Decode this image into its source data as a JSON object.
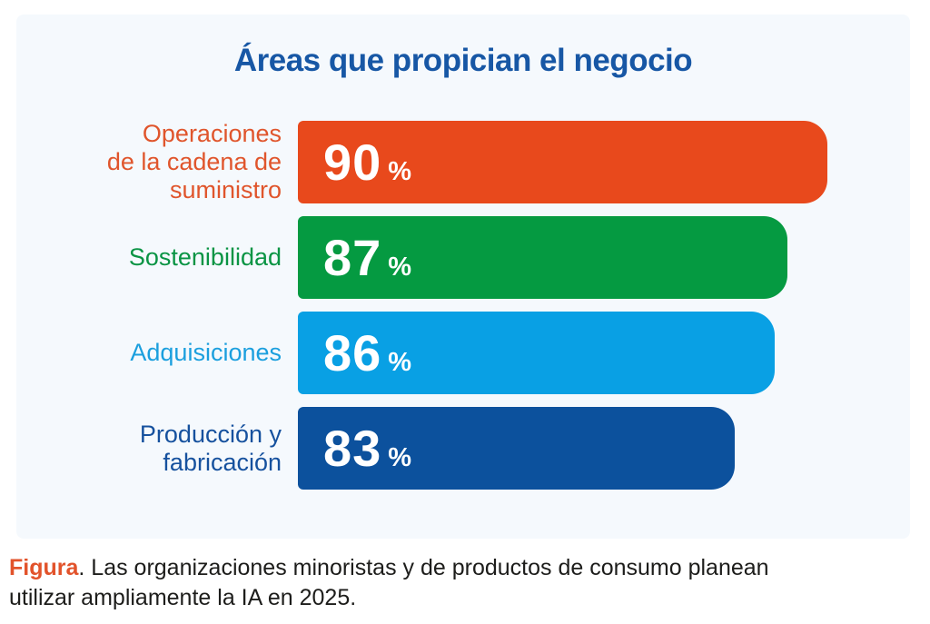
{
  "page": {
    "background": "#FFFFFF",
    "panel_background": "#F5F9FD"
  },
  "chart_data": {
    "type": "bar",
    "orientation": "horizontal",
    "title": "Áreas que propician el negocio",
    "title_color": "#1757A5",
    "unit": "%",
    "xlim": [
      50,
      90
    ],
    "grid": false,
    "legend": false,
    "value_labels_inside_bars": true,
    "categories": [
      "Operaciones de la cadena de suministro",
      "Sostenibilidad",
      "Adquisiciones",
      "Producción y fabricación"
    ],
    "values": [
      90,
      87,
      86,
      83
    ],
    "rows": [
      {
        "label": "Operaciones\nde la cadena de\nsuministro",
        "value": 90,
        "unit": "%",
        "color": "#E8491C",
        "label_color": "#E0552C"
      },
      {
        "label": "Sostenibilidad",
        "value": 87,
        "unit": "%",
        "color": "#059A41",
        "label_color": "#0A9444"
      },
      {
        "label": "Adquisiciones",
        "value": 86,
        "unit": "%",
        "color": "#09A0E4",
        "label_color": "#1B9FDE"
      },
      {
        "label": "Producción y\nfabricación",
        "value": 83,
        "unit": "%",
        "color": "#0C519D",
        "label_color": "#16519E"
      }
    ]
  },
  "caption": {
    "prefix": "Figura",
    "prefix_color": "#E2532B",
    "text": ". Las organizaciones minoristas y de productos de consumo planean\nutilizar ampliamente la IA en 2025."
  }
}
